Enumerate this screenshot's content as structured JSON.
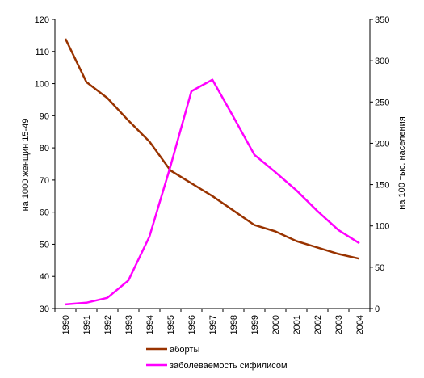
{
  "chart_data": {
    "type": "line",
    "categories": [
      "1990",
      "1991",
      "1992",
      "1993",
      "1994",
      "1995",
      "1996",
      "1997",
      "1998",
      "1999",
      "2000",
      "2001",
      "2002",
      "2003",
      "2004"
    ],
    "y_left": {
      "label": "на 1000 женщин 15-49",
      "range": [
        30,
        120
      ],
      "ticks": [
        30,
        40,
        50,
        60,
        70,
        80,
        90,
        100,
        110,
        120
      ]
    },
    "y_right": {
      "label": "на 100 тыс. населения",
      "range": [
        0,
        350
      ],
      "ticks": [
        0,
        50,
        100,
        150,
        200,
        250,
        300,
        350
      ]
    },
    "series": [
      {
        "name": "аборты",
        "axis": "left",
        "color": "#993300",
        "values": [
          114,
          100.5,
          95.5,
          88.5,
          82,
          73,
          69,
          65,
          60.5,
          56,
          54,
          51,
          49,
          47,
          45.5
        ]
      },
      {
        "name": "заболеваемость сифилисом",
        "axis": "right",
        "color": "#ff00ff",
        "values": [
          5,
          7,
          13,
          34,
          87,
          172,
          263,
          277,
          232,
          186,
          165,
          143,
          118,
          95,
          79
        ]
      }
    ],
    "grid": false,
    "legend": "bottom"
  }
}
